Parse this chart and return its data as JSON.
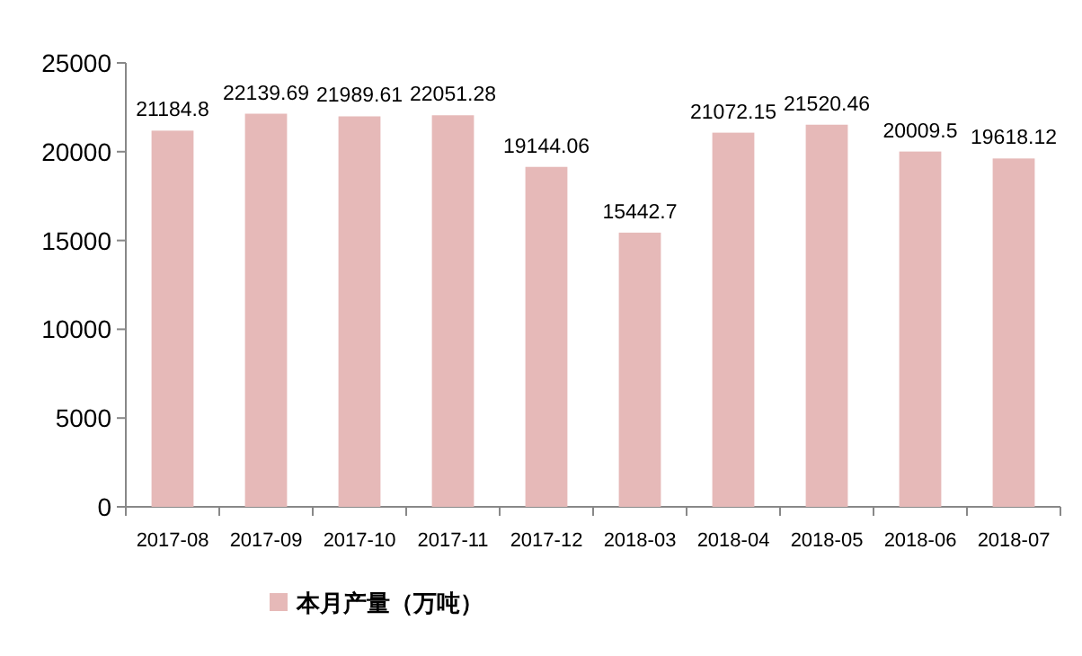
{
  "chart_data": {
    "type": "bar",
    "categories": [
      "2017-08",
      "2017-09",
      "2017-10",
      "2017-11",
      "2017-12",
      "2018-03",
      "2018-04",
      "2018-05",
      "2018-06",
      "2018-07"
    ],
    "series": [
      {
        "name": "本月产量（万吨）",
        "color": "#e6b9b8",
        "values": [
          21184.8,
          22139.69,
          21989.61,
          22051.28,
          19144.06,
          15442.7,
          21072.15,
          21520.46,
          20009.5,
          19618.12
        ]
      }
    ],
    "ylim": [
      0,
      25000
    ],
    "yticks": [
      0,
      5000,
      10000,
      15000,
      20000,
      25000
    ],
    "grid": false,
    "legend": "bottom",
    "data_labels": true
  }
}
